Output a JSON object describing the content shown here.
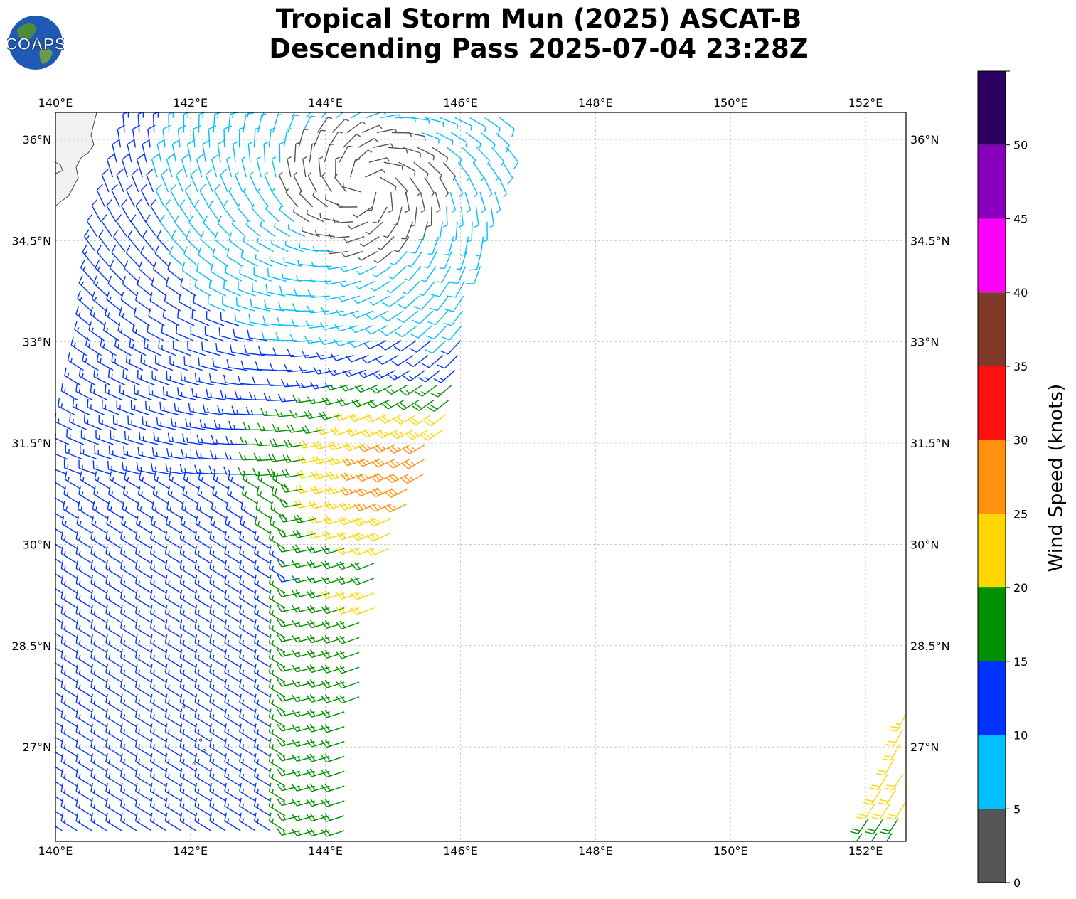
{
  "title": {
    "line1": "Tropical Storm Mun (2025) ASCAT-B",
    "line2": "Descending Pass 2025-07-04 23:28Z"
  },
  "logo": {
    "text": "COAPS",
    "icon": "globe-logo-icon"
  },
  "map": {
    "lon_range": [
      140.0,
      152.6
    ],
    "lat_range": [
      25.6,
      36.4
    ],
    "lon_ticks": [
      "140°E",
      "142°E",
      "144°E",
      "146°E",
      "148°E",
      "150°E",
      "152°E"
    ],
    "lon_tick_values": [
      140,
      142,
      144,
      146,
      148,
      150,
      152
    ],
    "lat_ticks": [
      "27°N",
      "28.5°N",
      "30°N",
      "31.5°N",
      "33°N",
      "34.5°N",
      "36°N"
    ],
    "lat_tick_values": [
      27,
      28.5,
      30,
      31.5,
      33,
      34.5,
      36
    ],
    "grid": true,
    "coastline": "Japan (Honshu) top-left corner"
  },
  "storm": {
    "name": "Mun",
    "center_lon": 144.6,
    "center_lat": 35.3
  },
  "colorbar": {
    "label": "Wind Speed (knots)",
    "ticks": [
      "0",
      "5",
      "10",
      "15",
      "20",
      "25",
      "30",
      "35",
      "40",
      "45",
      "50"
    ],
    "bins": [
      {
        "min": 0,
        "max": 5,
        "color": "#555555"
      },
      {
        "min": 5,
        "max": 10,
        "color": "#00bfff"
      },
      {
        "min": 10,
        "max": 15,
        "color": "#0033ff"
      },
      {
        "min": 15,
        "max": 20,
        "color": "#009000"
      },
      {
        "min": 20,
        "max": 25,
        "color": "#ffd700"
      },
      {
        "min": 25,
        "max": 30,
        "color": "#ff9010"
      },
      {
        "min": 30,
        "max": 35,
        "color": "#ff1010"
      },
      {
        "min": 35,
        "max": 40,
        "color": "#803a28"
      },
      {
        "min": 40,
        "max": 45,
        "color": "#ff00ff"
      },
      {
        "min": 45,
        "max": 50,
        "color": "#8800bb"
      },
      {
        "min": 50,
        "max": 55,
        "color": "#2b0060"
      }
    ]
  },
  "swaths": [
    {
      "name": "main",
      "lat_min": 25.6,
      "lat_max": 36.4,
      "west_edge": [
        [
          36.4,
          141.0
        ],
        [
          34.5,
          140.5
        ],
        [
          33.0,
          140.4
        ],
        [
          31.5,
          140.1
        ],
        [
          30.0,
          140.0
        ],
        [
          25.6,
          140.0
        ]
      ],
      "east_edge": [
        [
          36.4,
          146.8
        ],
        [
          34.0,
          146.3
        ],
        [
          33.0,
          146.0
        ],
        [
          31.5,
          145.7
        ],
        [
          30.0,
          145.0
        ],
        [
          28.5,
          144.6
        ],
        [
          25.6,
          144.3
        ]
      ]
    },
    {
      "name": "east",
      "lat_min": 25.6,
      "lat_max": 28.0,
      "west_edge": [
        [
          28.0,
          152.6
        ],
        [
          27.0,
          152.4
        ],
        [
          25.6,
          151.8
        ]
      ],
      "east_edge": [
        [
          28.0,
          152.6
        ],
        [
          25.6,
          152.6
        ]
      ]
    }
  ]
}
